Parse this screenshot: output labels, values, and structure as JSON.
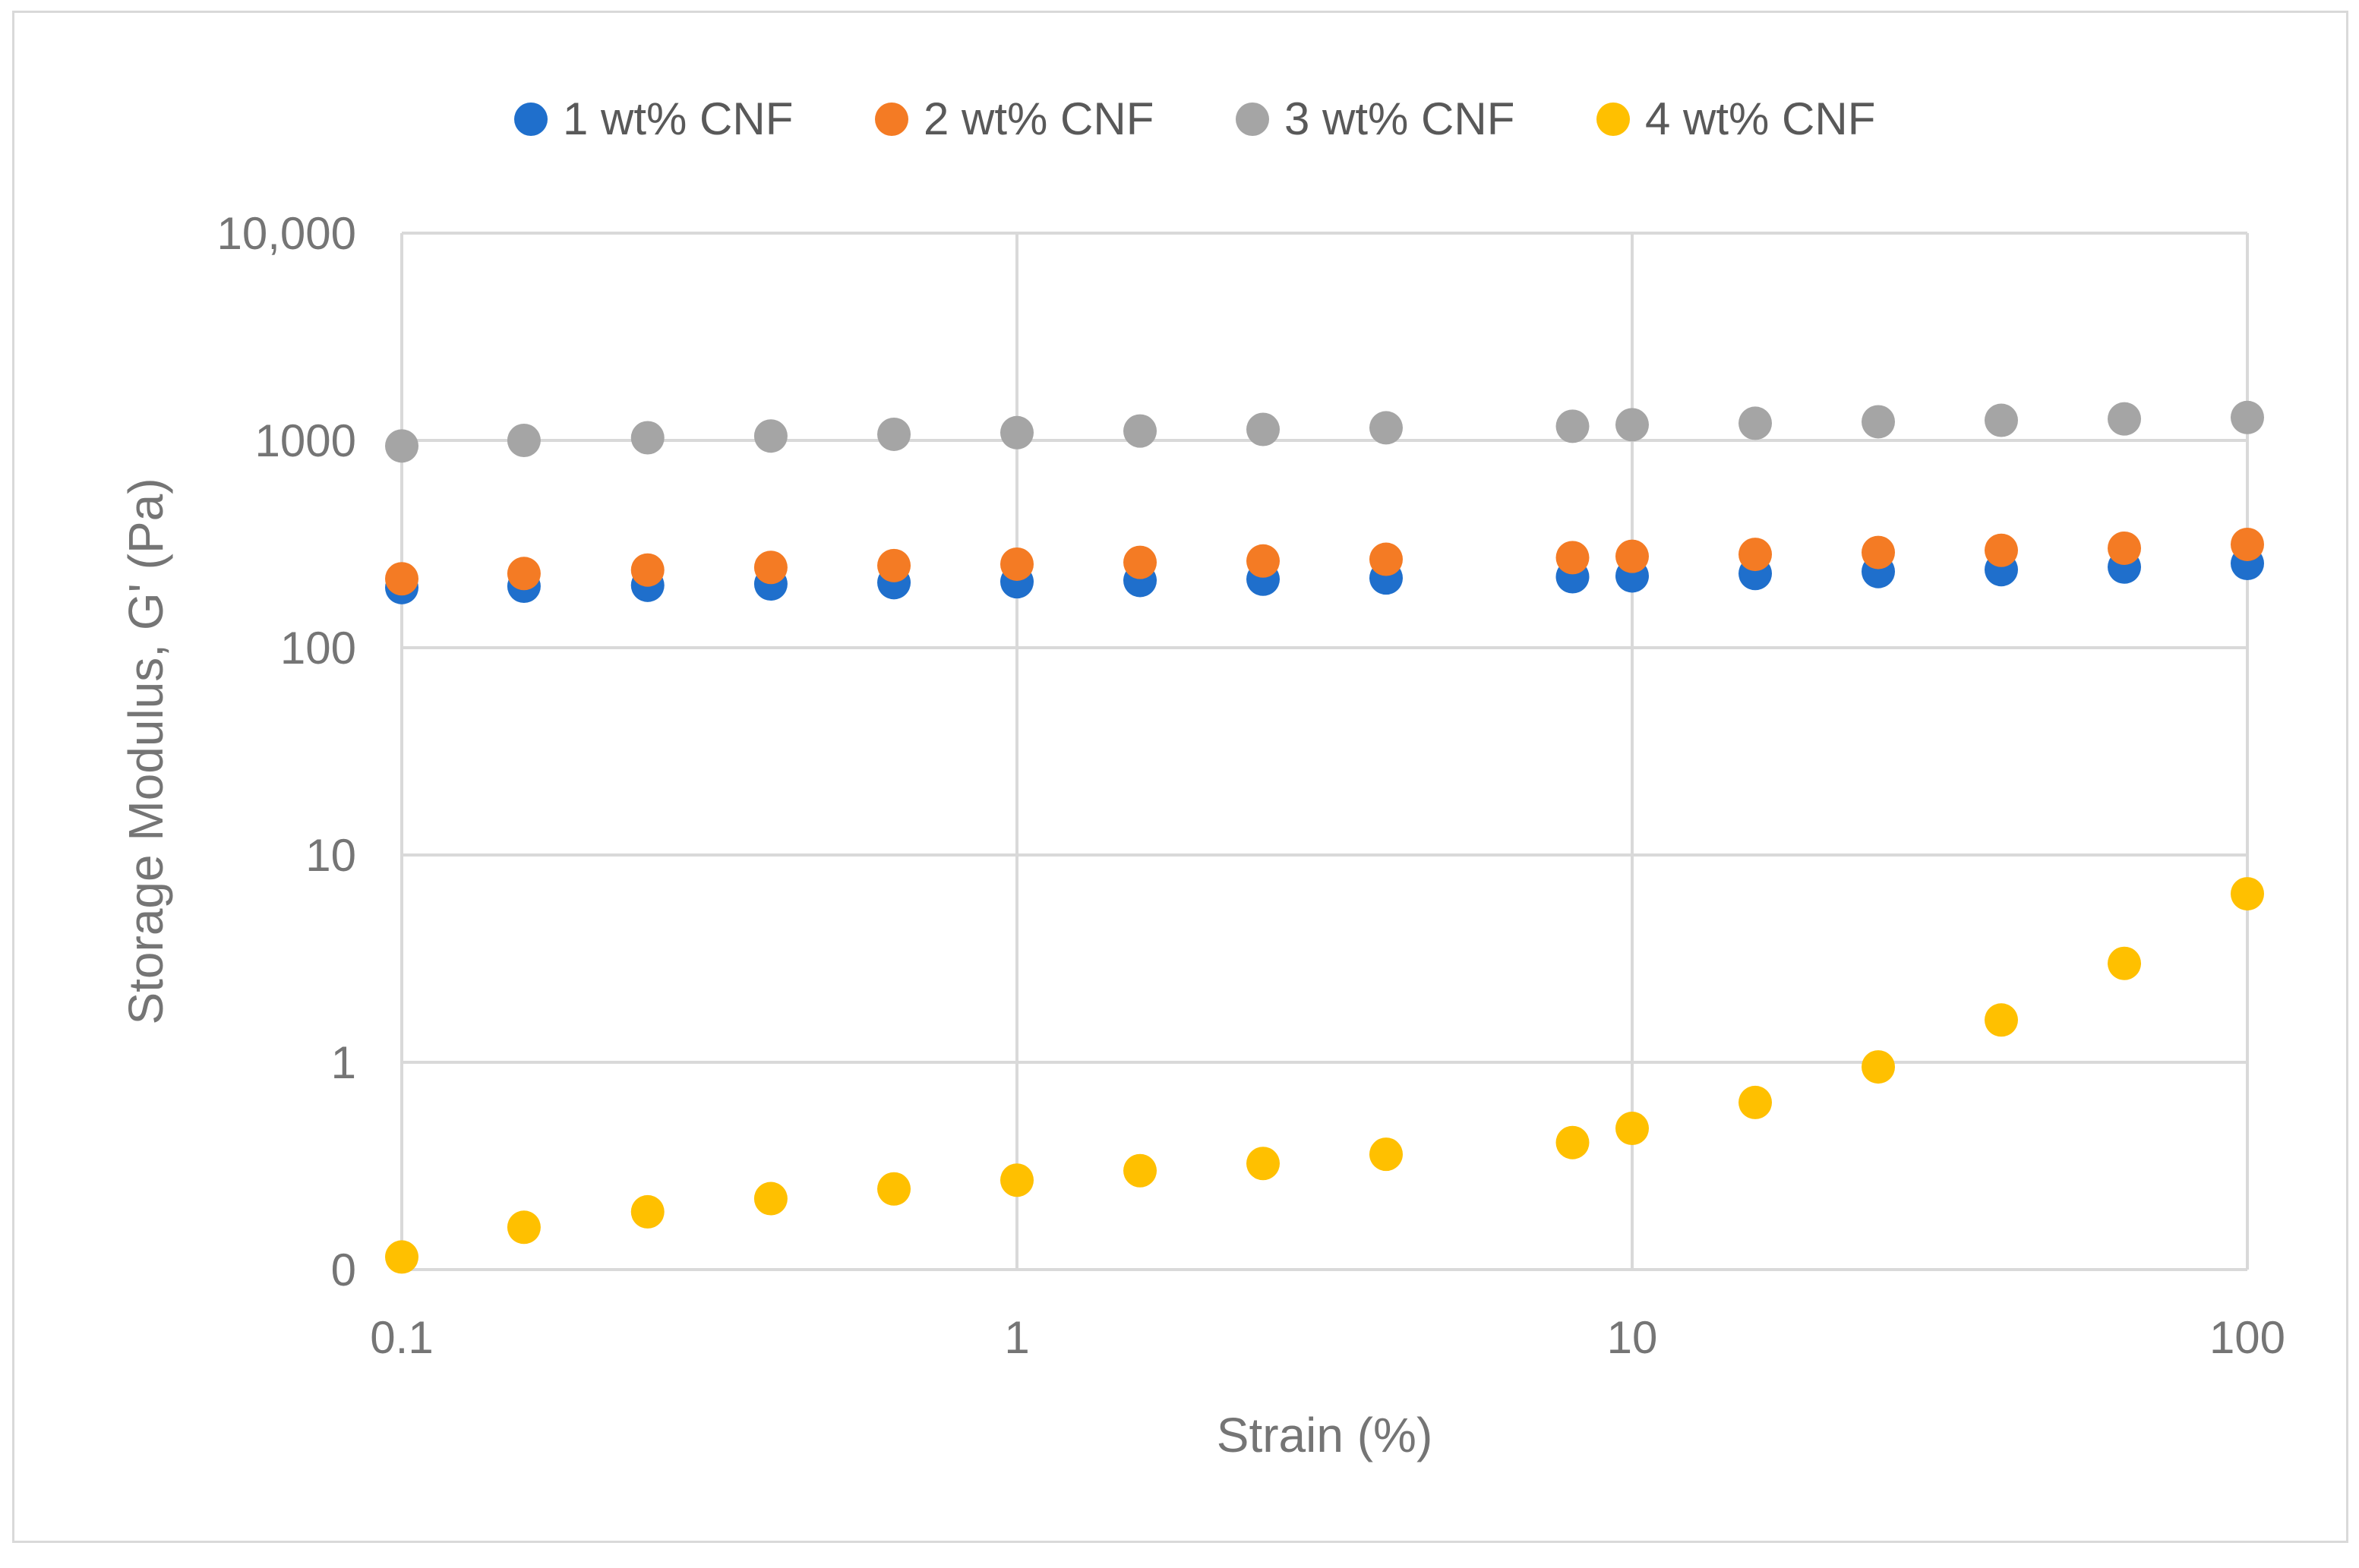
{
  "chart_data": {
    "type": "scatter",
    "title": "",
    "xlabel": "Strain (%)",
    "ylabel": "Storage Modulus, G' (Pa)",
    "xscale": "log",
    "yscale": "log",
    "xlim": [
      0.1,
      100
    ],
    "ylim": [
      0.1,
      10000
    ],
    "x_ticks": [
      0.1,
      1,
      10,
      100
    ],
    "x_tick_labels": [
      "0.1",
      "1",
      "10",
      "100"
    ],
    "y_ticks": [
      0.1,
      1,
      10,
      100,
      1000,
      10000
    ],
    "y_tick_labels": [
      "0",
      "1",
      "10",
      "100",
      "1000",
      "10,000"
    ],
    "grid": true,
    "legend_position": "top",
    "x": [
      0.1,
      0.158,
      0.251,
      0.398,
      0.631,
      1,
      1.585,
      2.512,
      3.981,
      8,
      10,
      15.85,
      25.12,
      39.81,
      63.1,
      100
    ],
    "series": [
      {
        "name": "1 wt% CNF",
        "color": "#1f6fcc",
        "values": [
          195,
          198,
          200,
          203,
          206,
          208,
          211,
          214,
          217,
          220,
          222,
          228,
          233,
          238,
          245,
          255
        ]
      },
      {
        "name": "2 wt% CNF",
        "color": "#f47b24",
        "values": [
          215,
          228,
          237,
          244,
          249,
          253,
          258,
          262,
          267,
          272,
          276,
          282,
          288,
          295,
          302,
          315
        ]
      },
      {
        "name": "3 wt% CNF",
        "color": "#a5a5a5",
        "values": [
          940,
          1000,
          1030,
          1050,
          1070,
          1090,
          1110,
          1130,
          1150,
          1170,
          1190,
          1210,
          1230,
          1250,
          1270,
          1290
        ]
      },
      {
        "name": "4 wt% CNF",
        "color": "#ffc000",
        "values": [
          0.115,
          0.16,
          0.19,
          0.22,
          0.245,
          0.27,
          0.3,
          0.325,
          0.36,
          0.41,
          0.48,
          0.64,
          0.95,
          1.6,
          3.0,
          6.5
        ]
      }
    ]
  }
}
